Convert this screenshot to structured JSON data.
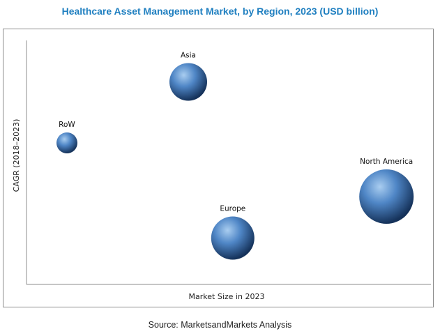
{
  "title": "Healthcare Asset Management Market, by Region, 2023 (USD billion)",
  "source": "Source: MarketsandMarkets Analysis",
  "colors": {
    "title": "#1f7fc0",
    "bubble_light": "#a9cdf0",
    "bubble_mid": "#4f86c6",
    "bubble_dark": "#15325a"
  },
  "chart_data": {
    "type": "scatter",
    "title": "Healthcare Asset Management Market, by Region, 2023 (USD billion)",
    "xlabel": "Market Size in 2023",
    "ylabel": "CAGR (2018–2023)",
    "xlim": [
      0,
      100
    ],
    "ylim": [
      0,
      100
    ],
    "grid": false,
    "legend": "none",
    "points": [
      {
        "label": "RoW",
        "x": 10,
        "y": 58,
        "size": 15
      },
      {
        "label": "Asia",
        "x": 40,
        "y": 83,
        "size": 27
      },
      {
        "label": "Europe",
        "x": 51,
        "y": 19,
        "size": 31
      },
      {
        "label": "North America",
        "x": 89,
        "y": 36,
        "size": 39
      }
    ]
  }
}
